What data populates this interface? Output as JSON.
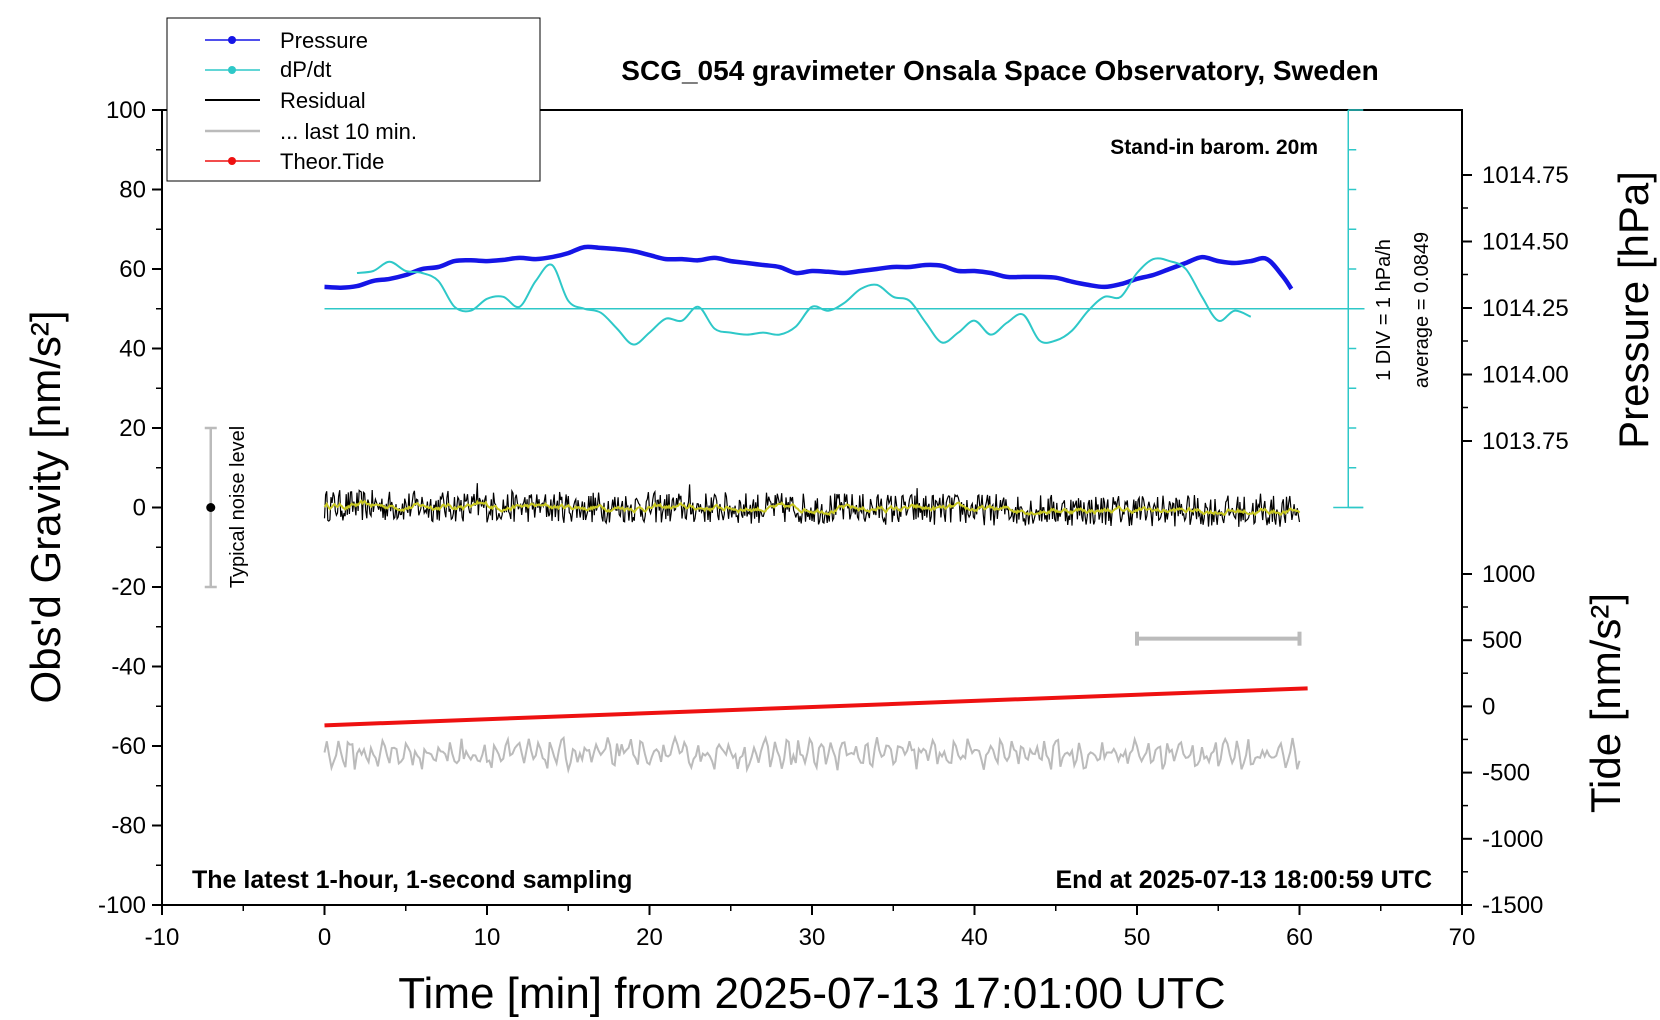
{
  "chart_data": {
    "type": "line",
    "title": "SCG_054 gravimeter Onsala Space Observatory, Sweden",
    "xlabel": "Time [min] from 2025-07-13 17:01:00 UTC",
    "ylabel": "Obs'd Gravity [nm/s²]",
    "ylabel_right_top": "Pressure [hPa]",
    "ylabel_right_bottom": "Tide [nm/s²]",
    "xlim": [
      -10,
      70
    ],
    "ylim": [
      -100,
      100
    ],
    "xticks": [
      "-10",
      "0",
      "10",
      "20",
      "30",
      "40",
      "50",
      "60",
      "70"
    ],
    "yticks": [
      "100",
      "80",
      "60",
      "40",
      "20",
      "0",
      "-20",
      "-40",
      "-60",
      "-80",
      "-100"
    ],
    "pressure_ticks": [
      "1014.75",
      "1014.50",
      "1014.25",
      "1014.00",
      "1013.75"
    ],
    "tide_ticks": [
      "1000",
      "500",
      "0",
      "-500",
      "-1000",
      "-1500"
    ],
    "annotations": {
      "barometer": "Stand-in barom. 20m",
      "sampling": "The latest 1-hour, 1-second sampling",
      "end_time": "End at 2025-07-13 18:00:59 UTC",
      "div_label": "1 DIV = 1 hPa/h",
      "average_label": "average = 0.0849",
      "noise_label": "Typical noise level"
    },
    "legend": {
      "placement": "top-left",
      "entries": [
        "Pressure",
        "dP/dt",
        "Residual",
        "... last 10 min.",
        "Theor.Tide"
      ]
    },
    "colors": {
      "pressure": "#1515e6",
      "dpdt": "#2ec8c8",
      "residual": "#000000",
      "residual_smooth": "#c8c820",
      "last10": "#bbbbbb",
      "tide": "#ee1111"
    },
    "series": [
      {
        "name": "Pressure",
        "x": [
          0,
          1,
          2,
          3,
          4,
          5,
          6,
          7,
          8,
          9,
          10,
          11,
          12,
          13,
          14,
          15,
          16,
          17,
          18,
          19,
          20,
          21,
          22,
          23,
          24,
          25,
          26,
          27,
          28,
          29,
          30,
          31,
          32,
          33,
          34,
          35,
          36,
          37,
          38,
          39,
          40,
          41,
          42,
          43,
          44,
          45,
          46,
          47,
          48,
          49,
          50,
          51,
          52,
          53,
          54,
          55,
          56,
          57,
          58,
          59,
          59.5
        ],
        "y": [
          55.5,
          55.3,
          55.7,
          57,
          57.5,
          58.5,
          60,
          60.5,
          62,
          62.2,
          62,
          62.3,
          62.8,
          62.5,
          63,
          64,
          65.5,
          65.3,
          65,
          64.5,
          63.5,
          62.5,
          62.5,
          62.2,
          62.8,
          62,
          61.5,
          61,
          60.5,
          59,
          59.5,
          59.3,
          59,
          59.5,
          60,
          60.5,
          60.5,
          61,
          60.8,
          59.5,
          59.5,
          59,
          58,
          58,
          58,
          57.8,
          56.8,
          56,
          55.5,
          56.2,
          57.5,
          58.5,
          60,
          61.5,
          63,
          62,
          61.5,
          62,
          62.5,
          58,
          55
        ]
      },
      {
        "name": "dP/dt",
        "x": [
          2,
          3,
          4,
          5,
          6,
          7,
          8,
          9,
          10,
          11,
          12,
          13,
          14,
          15,
          16,
          17,
          18,
          19,
          20,
          21,
          22,
          23,
          24,
          25,
          26,
          27,
          28,
          29,
          30,
          31,
          32,
          33,
          34,
          35,
          36,
          37,
          38,
          39,
          40,
          41,
          42,
          43,
          44,
          45,
          46,
          47,
          48,
          49,
          50,
          51,
          52,
          53,
          54,
          55,
          56,
          57
        ],
        "y": [
          59,
          59.5,
          61.8,
          59.5,
          59,
          57,
          50.5,
          49.5,
          52.5,
          53,
          50.5,
          57,
          61,
          52,
          50,
          49,
          45,
          41,
          44,
          47.5,
          47,
          50.5,
          45,
          44,
          43.5,
          44,
          43.5,
          45.5,
          50.5,
          49.5,
          51.5,
          55,
          56,
          53,
          52,
          46.5,
          41.5,
          44,
          47,
          43.5,
          46.5,
          48.5,
          42,
          42,
          44.5,
          49.5,
          53,
          53,
          59,
          62.5,
          62,
          60,
          53,
          47,
          49.5,
          48
        ]
      },
      {
        "name": "Residual",
        "x": [
          0,
          60
        ],
        "y": [
          0.5,
          -1
        ],
        "noise_amplitude": 4
      },
      {
        "name": "... last 10 min.",
        "x": [
          0,
          60
        ],
        "y": [
          -62,
          -62
        ],
        "noise_amplitude": 3
      },
      {
        "name": "Theor.Tide",
        "x": [
          0,
          60.5
        ],
        "y": [
          -54.8,
          -45.5
        ]
      }
    ],
    "reference_line": {
      "name": "dP/dt zero",
      "y": 50,
      "x": [
        0,
        64
      ]
    },
    "div_scale": {
      "x": 63,
      "y_from": 0,
      "y_to": 100
    },
    "noise_bar": {
      "x": -7,
      "y_center": 0,
      "y_low": -20,
      "y_high": 20
    },
    "last10_marker": {
      "x_from": 50,
      "x_to": 60,
      "y": -33
    }
  }
}
